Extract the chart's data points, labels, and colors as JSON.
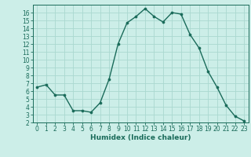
{
  "x": [
    0,
    1,
    2,
    3,
    4,
    5,
    6,
    7,
    8,
    9,
    10,
    11,
    12,
    13,
    14,
    15,
    16,
    17,
    18,
    19,
    20,
    21,
    22,
    23
  ],
  "y": [
    6.5,
    6.8,
    5.5,
    5.5,
    3.5,
    3.5,
    3.3,
    4.5,
    7.5,
    12.0,
    14.7,
    15.5,
    16.5,
    15.5,
    14.8,
    16.0,
    15.8,
    13.2,
    11.5,
    8.5,
    6.5,
    4.2,
    2.8,
    2.2
  ],
  "xlabel": "Humidex (Indice chaleur)",
  "bg_color": "#cceee8",
  "line_color": "#1a6b5a",
  "marker_color": "#1a6b5a",
  "grid_color": "#aad8d0",
  "ylim": [
    2,
    17.0
  ],
  "xlim_min": -0.5,
  "xlim_max": 23.5,
  "yticks": [
    2,
    3,
    4,
    5,
    6,
    7,
    8,
    9,
    10,
    11,
    12,
    13,
    14,
    15,
    16
  ],
  "xticks": [
    0,
    1,
    2,
    3,
    4,
    5,
    6,
    7,
    8,
    9,
    10,
    11,
    12,
    13,
    14,
    15,
    16,
    17,
    18,
    19,
    20,
    21,
    22,
    23
  ],
  "tick_fontsize": 5.5,
  "xlabel_fontsize": 6.5,
  "linewidth": 1.0,
  "markersize": 2.2
}
